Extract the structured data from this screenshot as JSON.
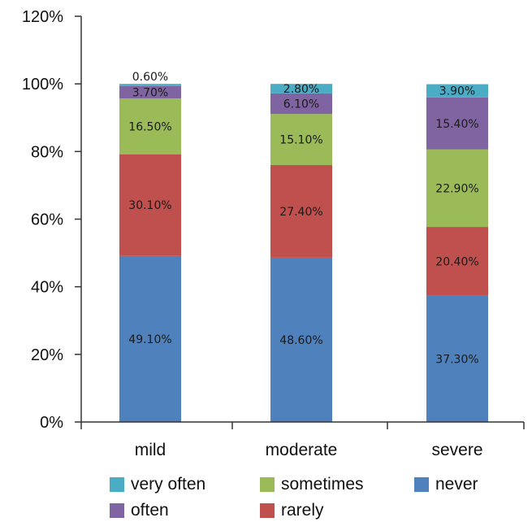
{
  "chart_data": {
    "type": "bar",
    "stacked": true,
    "categories": [
      "mild",
      "moderate",
      "severe"
    ],
    "series": [
      {
        "name": "never",
        "color": "#4f81bd",
        "values": [
          49.1,
          48.6,
          37.3
        ],
        "labels": [
          "49.10%",
          "48.60%",
          "37.30%"
        ]
      },
      {
        "name": "rarely",
        "color": "#c0504d",
        "values": [
          30.1,
          27.4,
          20.4
        ],
        "labels": [
          "30.10%",
          "27.40%",
          "20.40%"
        ]
      },
      {
        "name": "sometimes",
        "color": "#9bbb59",
        "values": [
          16.5,
          15.1,
          22.9
        ],
        "labels": [
          "16.50%",
          "15.10%",
          "22.90%"
        ]
      },
      {
        "name": "often",
        "color": "#8064a2",
        "values": [
          3.7,
          6.1,
          15.4
        ],
        "labels": [
          "3.70%",
          "6.10%",
          "15.40%"
        ]
      },
      {
        "name": "very often",
        "color": "#4bacc6",
        "values": [
          0.6,
          2.8,
          3.9
        ],
        "labels": [
          "0.60%",
          "2.80%",
          "3.90%"
        ]
      }
    ],
    "ylim": [
      0,
      120
    ],
    "yticks": [
      0,
      20,
      40,
      60,
      80,
      100,
      120
    ],
    "ytick_labels": [
      "0%",
      "20%",
      "40%",
      "60%",
      "80%",
      "100%",
      "120%"
    ],
    "grid": false,
    "legend_position": "bottom",
    "legend_order": [
      "very often",
      "sometimes",
      "never",
      "often",
      "rarely"
    ]
  }
}
